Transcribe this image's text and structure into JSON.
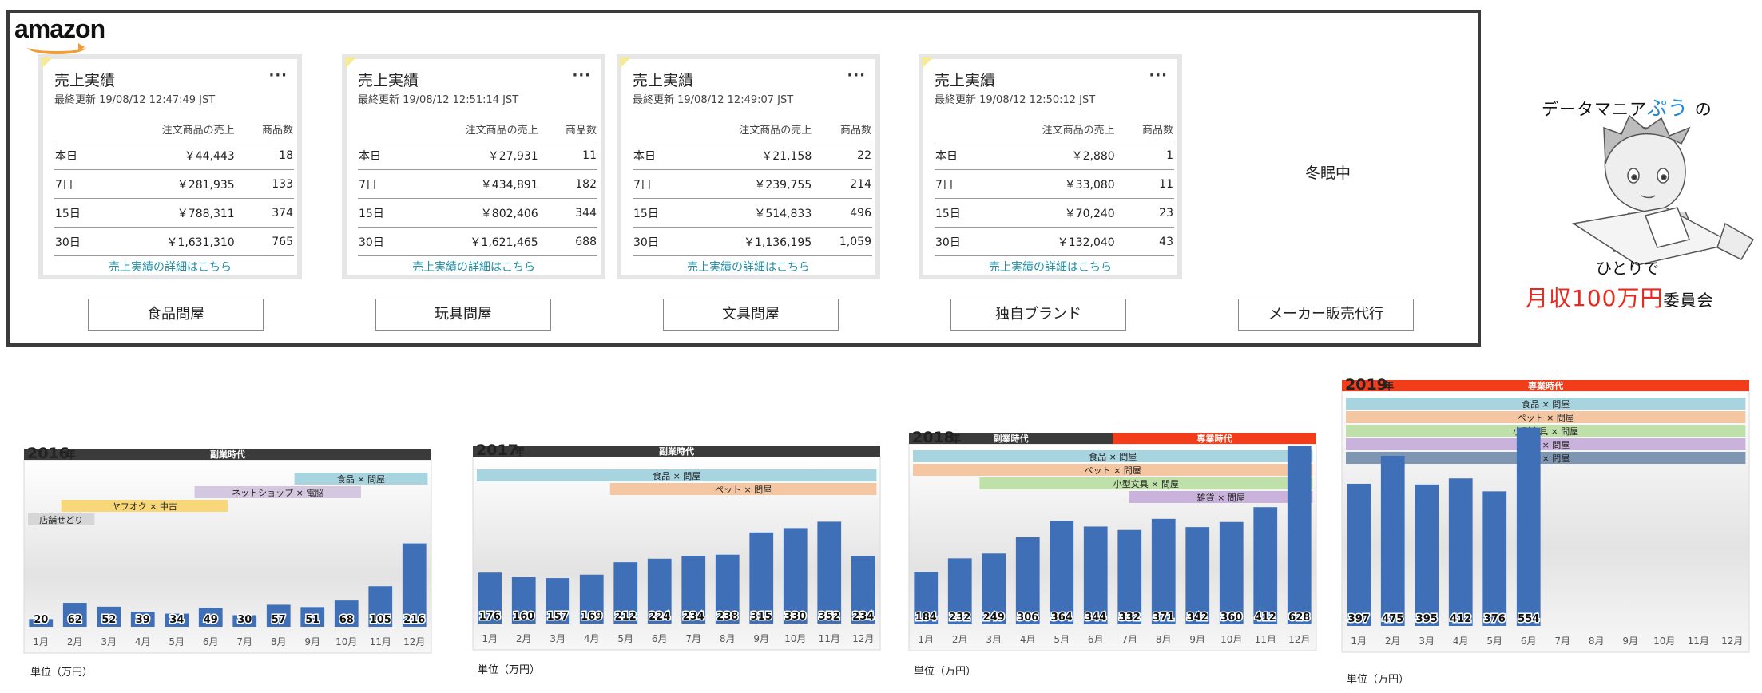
{
  "brand": {
    "logo_text": "amazon"
  },
  "cards": [
    {
      "title": "売上実績",
      "more": "···",
      "updated": "最終更新 19/08/12 12:47:49 JST",
      "col_sales": "注文商品の売上",
      "col_count": "商品数",
      "rows": [
        {
          "label": "本日",
          "sales": "￥44,443",
          "count": "18"
        },
        {
          "label": "7日",
          "sales": "￥281,935",
          "count": "133"
        },
        {
          "label": "15日",
          "sales": "￥788,311",
          "count": "374"
        },
        {
          "label": "30日",
          "sales": "￥1,631,310",
          "count": "765"
        }
      ],
      "link": "売上実績の詳細はこちら"
    },
    {
      "title": "売上実績",
      "more": "···",
      "updated": "最終更新 19/08/12 12:51:14 JST",
      "col_sales": "注文商品の売上",
      "col_count": "商品数",
      "rows": [
        {
          "label": "本日",
          "sales": "￥27,931",
          "count": "11"
        },
        {
          "label": "7日",
          "sales": "￥434,891",
          "count": "182"
        },
        {
          "label": "15日",
          "sales": "￥802,406",
          "count": "344"
        },
        {
          "label": "30日",
          "sales": "￥1,621,465",
          "count": "688"
        }
      ],
      "link": "売上実績の詳細はこちら"
    },
    {
      "title": "売上実績",
      "more": "···",
      "updated": "最終更新 19/08/12 12:49:07 JST",
      "col_sales": "注文商品の売上",
      "col_count": "商品数",
      "rows": [
        {
          "label": "本日",
          "sales": "￥21,158",
          "count": "22"
        },
        {
          "label": "7日",
          "sales": "￥239,755",
          "count": "214"
        },
        {
          "label": "15日",
          "sales": "￥514,833",
          "count": "496"
        },
        {
          "label": "30日",
          "sales": "￥1,136,195",
          "count": "1,059"
        }
      ],
      "link": "売上実績の詳細はこちら"
    },
    {
      "title": "売上実績",
      "more": "···",
      "updated": "最終更新 19/08/12 12:50:12 JST",
      "col_sales": "注文商品の売上",
      "col_count": "商品数",
      "rows": [
        {
          "label": "本日",
          "sales": "￥2,880",
          "count": "1"
        },
        {
          "label": "7日",
          "sales": "￥33,080",
          "count": "11"
        },
        {
          "label": "15日",
          "sales": "￥70,240",
          "count": "23"
        },
        {
          "label": "30日",
          "sales": "￥132,040",
          "count": "43"
        }
      ],
      "link": "売上実績の詳細はこちら"
    }
  ],
  "shops": [
    "食品問屋",
    "玩具問屋",
    "文具問屋",
    "独自ブランド",
    "メーカー販売代行"
  ],
  "hibernation": "冬眠中",
  "mascot": {
    "line1a": "データマニア",
    "line1b": "ぷう",
    "line1c": "の",
    "line2": "ひとりで",
    "line3a": "月収100万円",
    "line3b": "委員会"
  },
  "colors": {
    "bar": "#3f6fb6",
    "dark_era": "#3b3b3b",
    "red_era": "#f23c1a",
    "food": "#a8d4e0",
    "pet": "#f5c6a2",
    "stationery": "#bfe0a8",
    "misc": "#c9b3dc",
    "toys": "#7f96b2",
    "yafuoku": "#f7d778",
    "netshop": "#d4c7e0",
    "store": "#d6d6d6"
  },
  "chart_data": [
    {
      "type": "bar",
      "title_year": "2016",
      "title_suffix": "年",
      "unit": "単位（万円）",
      "categories": [
        "1月",
        "2月",
        "3月",
        "4月",
        "5月",
        "6月",
        "7月",
        "8月",
        "9月",
        "10月",
        "11月",
        "12月"
      ],
      "values": [
        20,
        62,
        52,
        39,
        34,
        49,
        30,
        57,
        51,
        68,
        105,
        216
      ],
      "labels": [
        "20",
        "62",
        "52",
        "39",
        "34",
        "49",
        "30",
        "57",
        "51",
        "68",
        "105",
        "216"
      ],
      "ylim": [
        0,
        420
      ],
      "eras": [
        {
          "label": "副業時代",
          "from": 0,
          "to": 12,
          "color": "#3b3b3b"
        }
      ],
      "ranges": [
        {
          "label": "食品 × 問屋",
          "from": 8,
          "to": 12,
          "color": "#a8d4e0"
        },
        {
          "label": "ネットショップ × 電脳",
          "from": 5,
          "to": 10,
          "color": "#d4c7e0"
        },
        {
          "label": "ヤフオク × 中古",
          "from": 1,
          "to": 6,
          "color": "#f7d778"
        },
        {
          "label": "店舗せどり",
          "from": 0,
          "to": 2,
          "color": "#d6d6d6"
        }
      ]
    },
    {
      "type": "bar",
      "title_year": "2017",
      "title_suffix": "年",
      "unit": "単位（万円）",
      "categories": [
        "1月",
        "2月",
        "3月",
        "4月",
        "5月",
        "6月",
        "7月",
        "8月",
        "9月",
        "10月",
        "11月",
        "12月"
      ],
      "values": [
        176,
        160,
        157,
        169,
        212,
        224,
        234,
        238,
        315,
        330,
        352,
        234
      ],
      "labels": [
        "176",
        "160",
        "157",
        "169",
        "212",
        "224",
        "234",
        "238",
        "315",
        "330",
        "352",
        "234"
      ],
      "ylim": [
        0,
        560
      ],
      "eras": [
        {
          "label": "副業時代",
          "from": 0,
          "to": 12,
          "color": "#3b3b3b"
        }
      ],
      "ranges": [
        {
          "label": "食品 × 問屋",
          "from": 0,
          "to": 12,
          "color": "#a8d4e0"
        },
        {
          "label": "ペット × 問屋",
          "from": 4,
          "to": 12,
          "color": "#f5c6a2"
        }
      ]
    },
    {
      "type": "bar",
      "title_year": "2018",
      "title_suffix": "年",
      "unit": "単位（万円）",
      "categories": [
        "1月",
        "2月",
        "3月",
        "4月",
        "5月",
        "6月",
        "7月",
        "8月",
        "9月",
        "10月",
        "11月",
        "12月"
      ],
      "values": [
        184,
        232,
        249,
        306,
        364,
        344,
        332,
        371,
        342,
        360,
        412,
        628
      ],
      "labels": [
        "184",
        "232",
        "249",
        "306",
        "364",
        "344",
        "332",
        "371",
        "342",
        "360",
        "412",
        "628"
      ],
      "ylim": [
        0,
        640
      ],
      "eras": [
        {
          "label": "副業時代",
          "from": 0,
          "to": 6,
          "color": "#3b3b3b"
        },
        {
          "label": "専業時代",
          "from": 6,
          "to": 12,
          "color": "#f23c1a"
        }
      ],
      "ranges": [
        {
          "label": "食品 × 問屋",
          "from": 0,
          "to": 12,
          "color": "#a8d4e0"
        },
        {
          "label": "ペット × 問屋",
          "from": 0,
          "to": 12,
          "color": "#f5c6a2"
        },
        {
          "label": "小型文具 × 問屋",
          "from": 2,
          "to": 12,
          "color": "#bfe0a8"
        },
        {
          "label": "雑貨 × 問屋",
          "from": 6.5,
          "to": 12,
          "color": "#c9b3dc"
        }
      ]
    },
    {
      "type": "bar",
      "title_year": "2019",
      "title_suffix": "年",
      "unit": "単位（万円）",
      "categories": [
        "1月",
        "2月",
        "3月",
        "4月",
        "5月",
        "6月",
        "7月",
        "8月",
        "9月",
        "10月",
        "11月",
        "12月"
      ],
      "values": [
        397,
        475,
        395,
        412,
        376,
        554
      ],
      "labels": [
        "397",
        "475",
        "395",
        "412",
        "376",
        "554"
      ],
      "ylim": [
        0,
        660
      ],
      "eras": [
        {
          "label": "専業時代",
          "from": 0,
          "to": 12,
          "color": "#f23c1a"
        }
      ],
      "ranges": [
        {
          "label": "食品 × 問屋",
          "from": 0,
          "to": 12,
          "color": "#a8d4e0"
        },
        {
          "label": "ペット × 問屋",
          "from": 0,
          "to": 12,
          "color": "#f5c6a2"
        },
        {
          "label": "小型文具 × 問屋",
          "from": 0,
          "to": 12,
          "color": "#bfe0a8"
        },
        {
          "label": "雑貨 × 問屋",
          "from": 0,
          "to": 12,
          "color": "#c9b3dc"
        },
        {
          "label": "玩具 × 問屋",
          "from": 0,
          "to": 12,
          "color": "#7f96b2"
        }
      ]
    }
  ]
}
